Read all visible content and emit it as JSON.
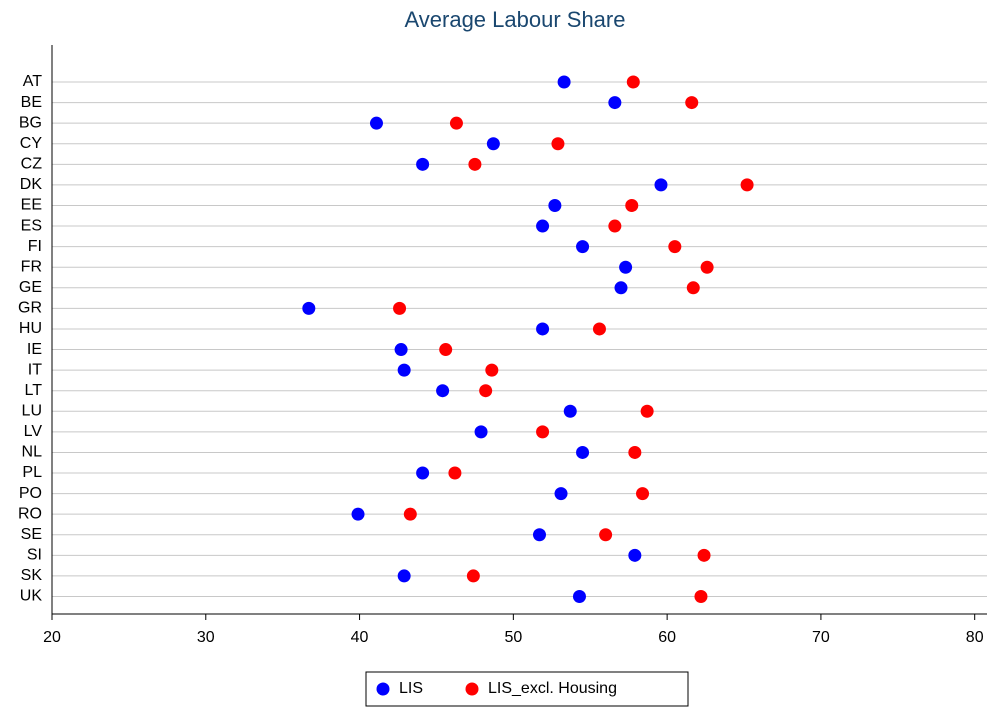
{
  "chart_data": {
    "type": "dot",
    "title": "Average Labour Share",
    "categories": [
      "AT",
      "BE",
      "BG",
      "CY",
      "CZ",
      "DK",
      "EE",
      "ES",
      "FI",
      "FR",
      "GE",
      "GR",
      "HU",
      "IE",
      "IT",
      "LT",
      "LU",
      "LV",
      "NL",
      "PL",
      "PO",
      "RO",
      "SE",
      "SI",
      "SK",
      "UK"
    ],
    "series": [
      {
        "name": "LIS",
        "color": "#0000ff",
        "values": [
          53.3,
          56.6,
          41.1,
          48.7,
          44.1,
          59.6,
          52.7,
          51.9,
          54.5,
          57.3,
          57.0,
          36.7,
          51.9,
          42.7,
          42.9,
          45.4,
          53.7,
          47.9,
          54.5,
          44.1,
          53.1,
          39.9,
          51.7,
          57.9,
          42.9,
          54.3
        ]
      },
      {
        "name": "LIS_excl. Housing",
        "color": "#ff0000",
        "values": [
          57.8,
          61.6,
          46.3,
          52.9,
          47.5,
          65.2,
          57.7,
          56.6,
          60.5,
          62.6,
          61.7,
          42.6,
          55.6,
          45.6,
          48.6,
          48.2,
          58.7,
          51.9,
          57.9,
          46.2,
          58.4,
          43.3,
          56.0,
          62.4,
          47.4,
          62.2
        ]
      }
    ],
    "xlim": [
      20,
      80.8
    ],
    "xticks": [
      20,
      30,
      40,
      50,
      60,
      70,
      80
    ],
    "grid": true
  }
}
